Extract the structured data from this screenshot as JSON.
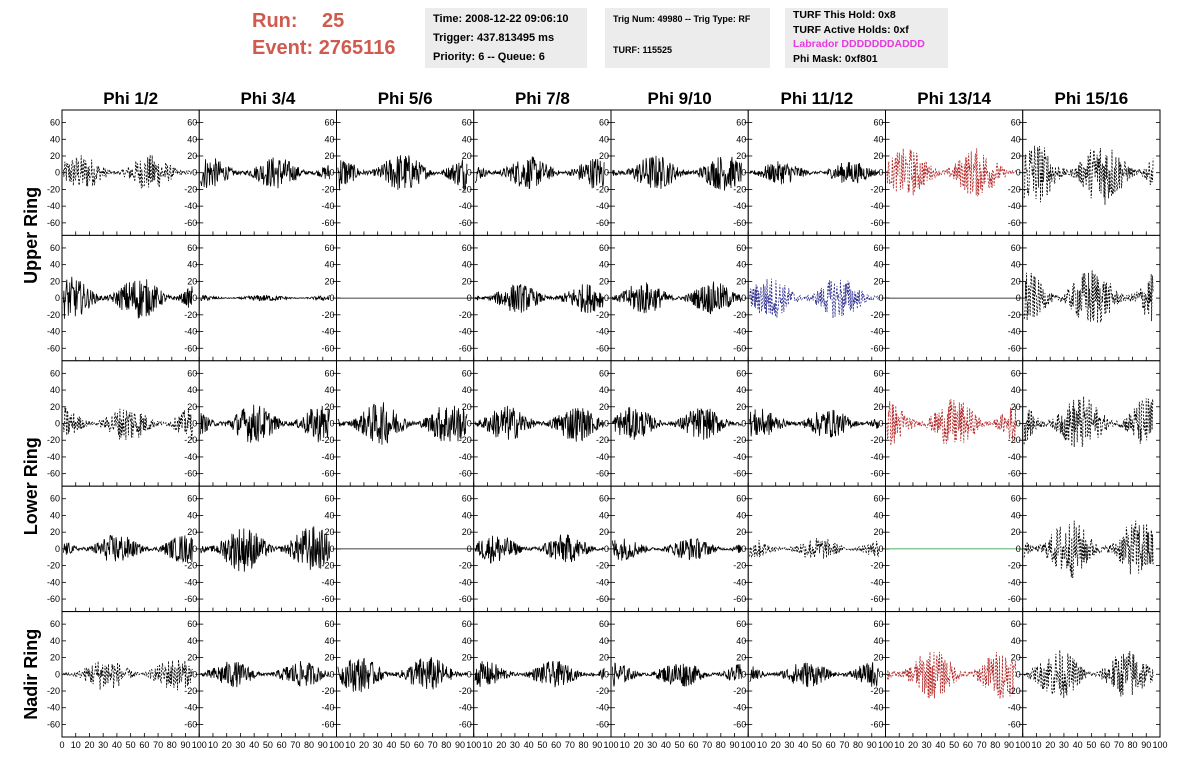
{
  "header": {
    "run_label": "Run:",
    "run_value": "25",
    "event_label": "Event:",
    "event_value": "2765116",
    "time": "Time: 2008-12-22 09:06:10",
    "trigger": "Trigger: 437.813495 ms",
    "priority": "Priority: 6 -- Queue: 6",
    "trig_num": "Trig Num: 49980 -- Trig Type: RF",
    "turf": "TURF: 115525",
    "turf_hold": "TURF This Hold: 0x8",
    "turf_active": "TURF Active Holds: 0xf",
    "labrador": "Labrador DDDDDDDADDD",
    "phi_mask": "Phi Mask: 0xf801"
  },
  "colors": {
    "run_text": "#d05a4e",
    "labrador_text": "#e63adf",
    "trace_black": "#000000",
    "trace_red": "#b22222",
    "trace_blue": "#2b2b8f",
    "trace_green": "#1f8f3a"
  },
  "chart_data": {
    "type": "line",
    "columns": [
      "Phi 1/2",
      "Phi 3/4",
      "Phi 5/6",
      "Phi 7/8",
      "Phi 9/10",
      "Phi 11/12",
      "Phi 13/14",
      "Phi 15/16"
    ],
    "ring_labels": [
      "Upper Ring",
      "Lower Ring",
      "Nadir Ring"
    ],
    "row_groups": [
      {
        "ring": "Upper Ring",
        "rows": [
          0,
          1
        ]
      },
      {
        "ring": "Lower Ring",
        "rows": [
          2,
          3
        ]
      },
      {
        "ring": "Nadir Ring",
        "rows": [
          4
        ]
      }
    ],
    "xlim": [
      0,
      100
    ],
    "ylim": [
      -75,
      75
    ],
    "x_ticks": [
      0,
      10,
      20,
      30,
      40,
      50,
      60,
      70,
      80,
      90,
      100
    ],
    "y_ticks": [
      -60,
      -40,
      -20,
      0,
      20,
      40,
      60
    ],
    "x_tick_text": [
      "0",
      "10",
      "20",
      "30",
      "40",
      "50",
      "60",
      "70",
      "80",
      "90",
      "100"
    ],
    "y_tick_text": [
      "-60",
      "-40",
      "-20",
      "0",
      "20",
      "40",
      "60"
    ],
    "grid": false,
    "panels": [
      [
        {
          "style": "dashed",
          "color": "black",
          "amplitude": 22
        },
        {
          "style": "solid",
          "color": "black",
          "amplitude": 20
        },
        {
          "style": "solid",
          "color": "black",
          "amplitude": 24
        },
        {
          "style": "solid",
          "color": "black",
          "amplitude": 20
        },
        {
          "style": "solid",
          "color": "black",
          "amplitude": 22
        },
        {
          "style": "solid",
          "color": "black",
          "amplitude": 14
        },
        {
          "style": "dashed",
          "color": "red",
          "amplitude": 30
        },
        {
          "style": "dashed",
          "color": "black",
          "amplitude": 40
        }
      ],
      [
        {
          "style": "solid",
          "color": "black",
          "amplitude": 26
        },
        {
          "style": "solid",
          "color": "black",
          "amplitude": 4
        },
        {
          "style": "flat",
          "color": "black",
          "amplitude": 0
        },
        {
          "style": "solid",
          "color": "black",
          "amplitude": 18
        },
        {
          "style": "solid",
          "color": "black",
          "amplitude": 20
        },
        {
          "style": "dashed",
          "color": "blue",
          "amplitude": 26
        },
        {
          "style": "flat",
          "color": "black",
          "amplitude": 0
        },
        {
          "style": "dashed",
          "color": "black",
          "amplitude": 36
        }
      ],
      [
        {
          "style": "dashed",
          "color": "black",
          "amplitude": 22
        },
        {
          "style": "solid",
          "color": "black",
          "amplitude": 24
        },
        {
          "style": "solid",
          "color": "black",
          "amplitude": 26
        },
        {
          "style": "solid",
          "color": "black",
          "amplitude": 22
        },
        {
          "style": "solid",
          "color": "black",
          "amplitude": 20
        },
        {
          "style": "solid",
          "color": "black",
          "amplitude": 18
        },
        {
          "style": "dashed",
          "color": "red",
          "amplitude": 30
        },
        {
          "style": "dashed",
          "color": "black",
          "amplitude": 34
        }
      ],
      [
        {
          "style": "solid",
          "color": "black",
          "amplitude": 18
        },
        {
          "style": "solid",
          "color": "black",
          "amplitude": 28
        },
        {
          "style": "flat",
          "color": "black",
          "amplitude": 0
        },
        {
          "style": "solid",
          "color": "black",
          "amplitude": 18
        },
        {
          "style": "solid",
          "color": "black",
          "amplitude": 14
        },
        {
          "style": "dashed",
          "color": "black",
          "amplitude": 14
        },
        {
          "style": "flat",
          "color": "green",
          "amplitude": 0
        },
        {
          "style": "dashed",
          "color": "black",
          "amplitude": 36
        }
      ],
      [
        {
          "style": "dashed",
          "color": "black",
          "amplitude": 20
        },
        {
          "style": "solid",
          "color": "black",
          "amplitude": 16
        },
        {
          "style": "solid",
          "color": "black",
          "amplitude": 22
        },
        {
          "style": "solid",
          "color": "black",
          "amplitude": 16
        },
        {
          "style": "solid",
          "color": "black",
          "amplitude": 16
        },
        {
          "style": "solid",
          "color": "black",
          "amplitude": 16
        },
        {
          "style": "dashed",
          "color": "red",
          "amplitude": 30
        },
        {
          "style": "dashed",
          "color": "black",
          "amplitude": 30
        }
      ]
    ]
  }
}
